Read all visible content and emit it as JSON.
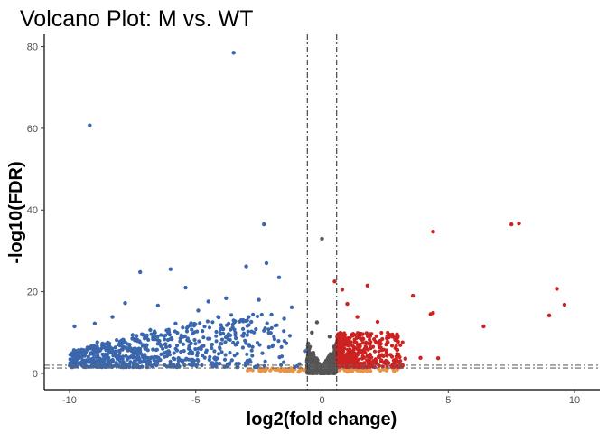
{
  "chart_data": {
    "type": "scatter",
    "title": "Volcano Plot: M vs. WT",
    "xlabel": "log2(fold change)",
    "ylabel": "-log10(FDR)",
    "xlim": [
      -11,
      11
    ],
    "ylim": [
      -4,
      83
    ],
    "xticks": [
      -10,
      -5,
      0,
      5,
      10
    ],
    "yticks": [
      0,
      20,
      40,
      60,
      80
    ],
    "grid": false,
    "legend": "none",
    "thresholds": {
      "log2fc": [
        -0.58,
        0.58
      ],
      "neg_log10_fdr": [
        1.3,
        2.0
      ]
    },
    "colors": {
      "down": "#3a66ad",
      "up": "#cc2222",
      "not_significant": "#555555",
      "low_significance": "#e8954a",
      "threshold_line": "#333333"
    },
    "series": [
      {
        "group": "down",
        "points": [
          [
            -3.5,
            78.5
          ],
          [
            -9.2,
            60.7
          ],
          [
            -2.3,
            36.5
          ],
          [
            -2.2,
            27.0
          ],
          [
            -3.0,
            26.2
          ],
          [
            -6.0,
            25.5
          ],
          [
            -7.2,
            24.8
          ],
          [
            -1.7,
            23.5
          ],
          [
            -5.4,
            21.0
          ],
          [
            -2.5,
            18.0
          ],
          [
            -3.8,
            18.4
          ],
          [
            -4.5,
            17.6
          ],
          [
            -6.5,
            16.6
          ],
          [
            -7.8,
            17.2
          ],
          [
            -8.3,
            13.8
          ],
          [
            -9.0,
            12.2
          ],
          [
            -9.8,
            11.5
          ],
          [
            -9.3,
            5.8
          ],
          [
            -8.9,
            7.6
          ],
          [
            -4.9,
            15.4
          ],
          [
            -1.2,
            16.2
          ],
          [
            -2.0,
            14.4
          ],
          [
            -3.2,
            13.0
          ],
          [
            -5.8,
            12.2
          ],
          [
            -6.8,
            10.6
          ],
          [
            -7.5,
            9.4
          ],
          [
            -4.0,
            11.8
          ],
          [
            -2.8,
            12.6
          ],
          [
            -1.5,
            13.4
          ]
        ],
        "cloud": {
          "x": [
            -10,
            -0.6
          ],
          "y": [
            1.5,
            14
          ],
          "n": 700
        }
      },
      {
        "group": "up",
        "points": [
          [
            7.5,
            36.5
          ],
          [
            7.8,
            36.7
          ],
          [
            4.4,
            34.7
          ],
          [
            9.3,
            20.7
          ],
          [
            3.6,
            19.0
          ],
          [
            9.6,
            16.8
          ],
          [
            4.4,
            14.8
          ],
          [
            4.3,
            14.5
          ],
          [
            9.0,
            14.2
          ],
          [
            6.4,
            11.5
          ],
          [
            2.2,
            12.6
          ],
          [
            1.0,
            17.0
          ],
          [
            0.5,
            22.5
          ],
          [
            1.8,
            21.5
          ],
          [
            0.8,
            20.5
          ],
          [
            3.9,
            3.8
          ],
          [
            3.3,
            3.6
          ],
          [
            4.6,
            3.7
          ],
          [
            2.6,
            9.0
          ],
          [
            1.4,
            13.8
          ]
        ],
        "cloud": {
          "x": [
            0.6,
            3.2
          ],
          "y": [
            1.5,
            10
          ],
          "n": 450
        }
      },
      {
        "group": "not_significant",
        "points": [
          [
            0.0,
            33.0
          ],
          [
            -0.4,
            10.0
          ],
          [
            -0.2,
            12.5
          ],
          [
            0.3,
            9.0
          ]
        ],
        "cloud": {
          "x": [
            -0.6,
            0.6
          ],
          "y": [
            0,
            8
          ],
          "n": 450
        }
      },
      {
        "group": "low_significance",
        "points": [],
        "cloud": {
          "x": [
            -3.0,
            3.0
          ],
          "y": [
            0.4,
            1.3
          ],
          "n": 120
        }
      }
    ]
  }
}
